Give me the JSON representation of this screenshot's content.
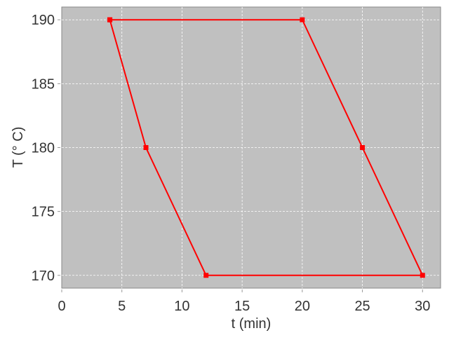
{
  "chart_data": {
    "type": "line",
    "title": "",
    "xlabel": "t (min)",
    "ylabel": "T (° C)",
    "xlim": [
      0,
      31.5
    ],
    "ylim": [
      169,
      191
    ],
    "xticks": [
      0,
      5,
      10,
      15,
      20,
      25,
      30
    ],
    "yticks": [
      170,
      175,
      180,
      185,
      190
    ],
    "grid": true,
    "background": "#c0c0c0",
    "series": [
      {
        "color": "#ff0000",
        "marker": "square",
        "x": [
          4,
          20,
          25,
          30,
          12,
          7,
          4
        ],
        "y": [
          190,
          190,
          180,
          170,
          170,
          180,
          190
        ]
      }
    ]
  }
}
